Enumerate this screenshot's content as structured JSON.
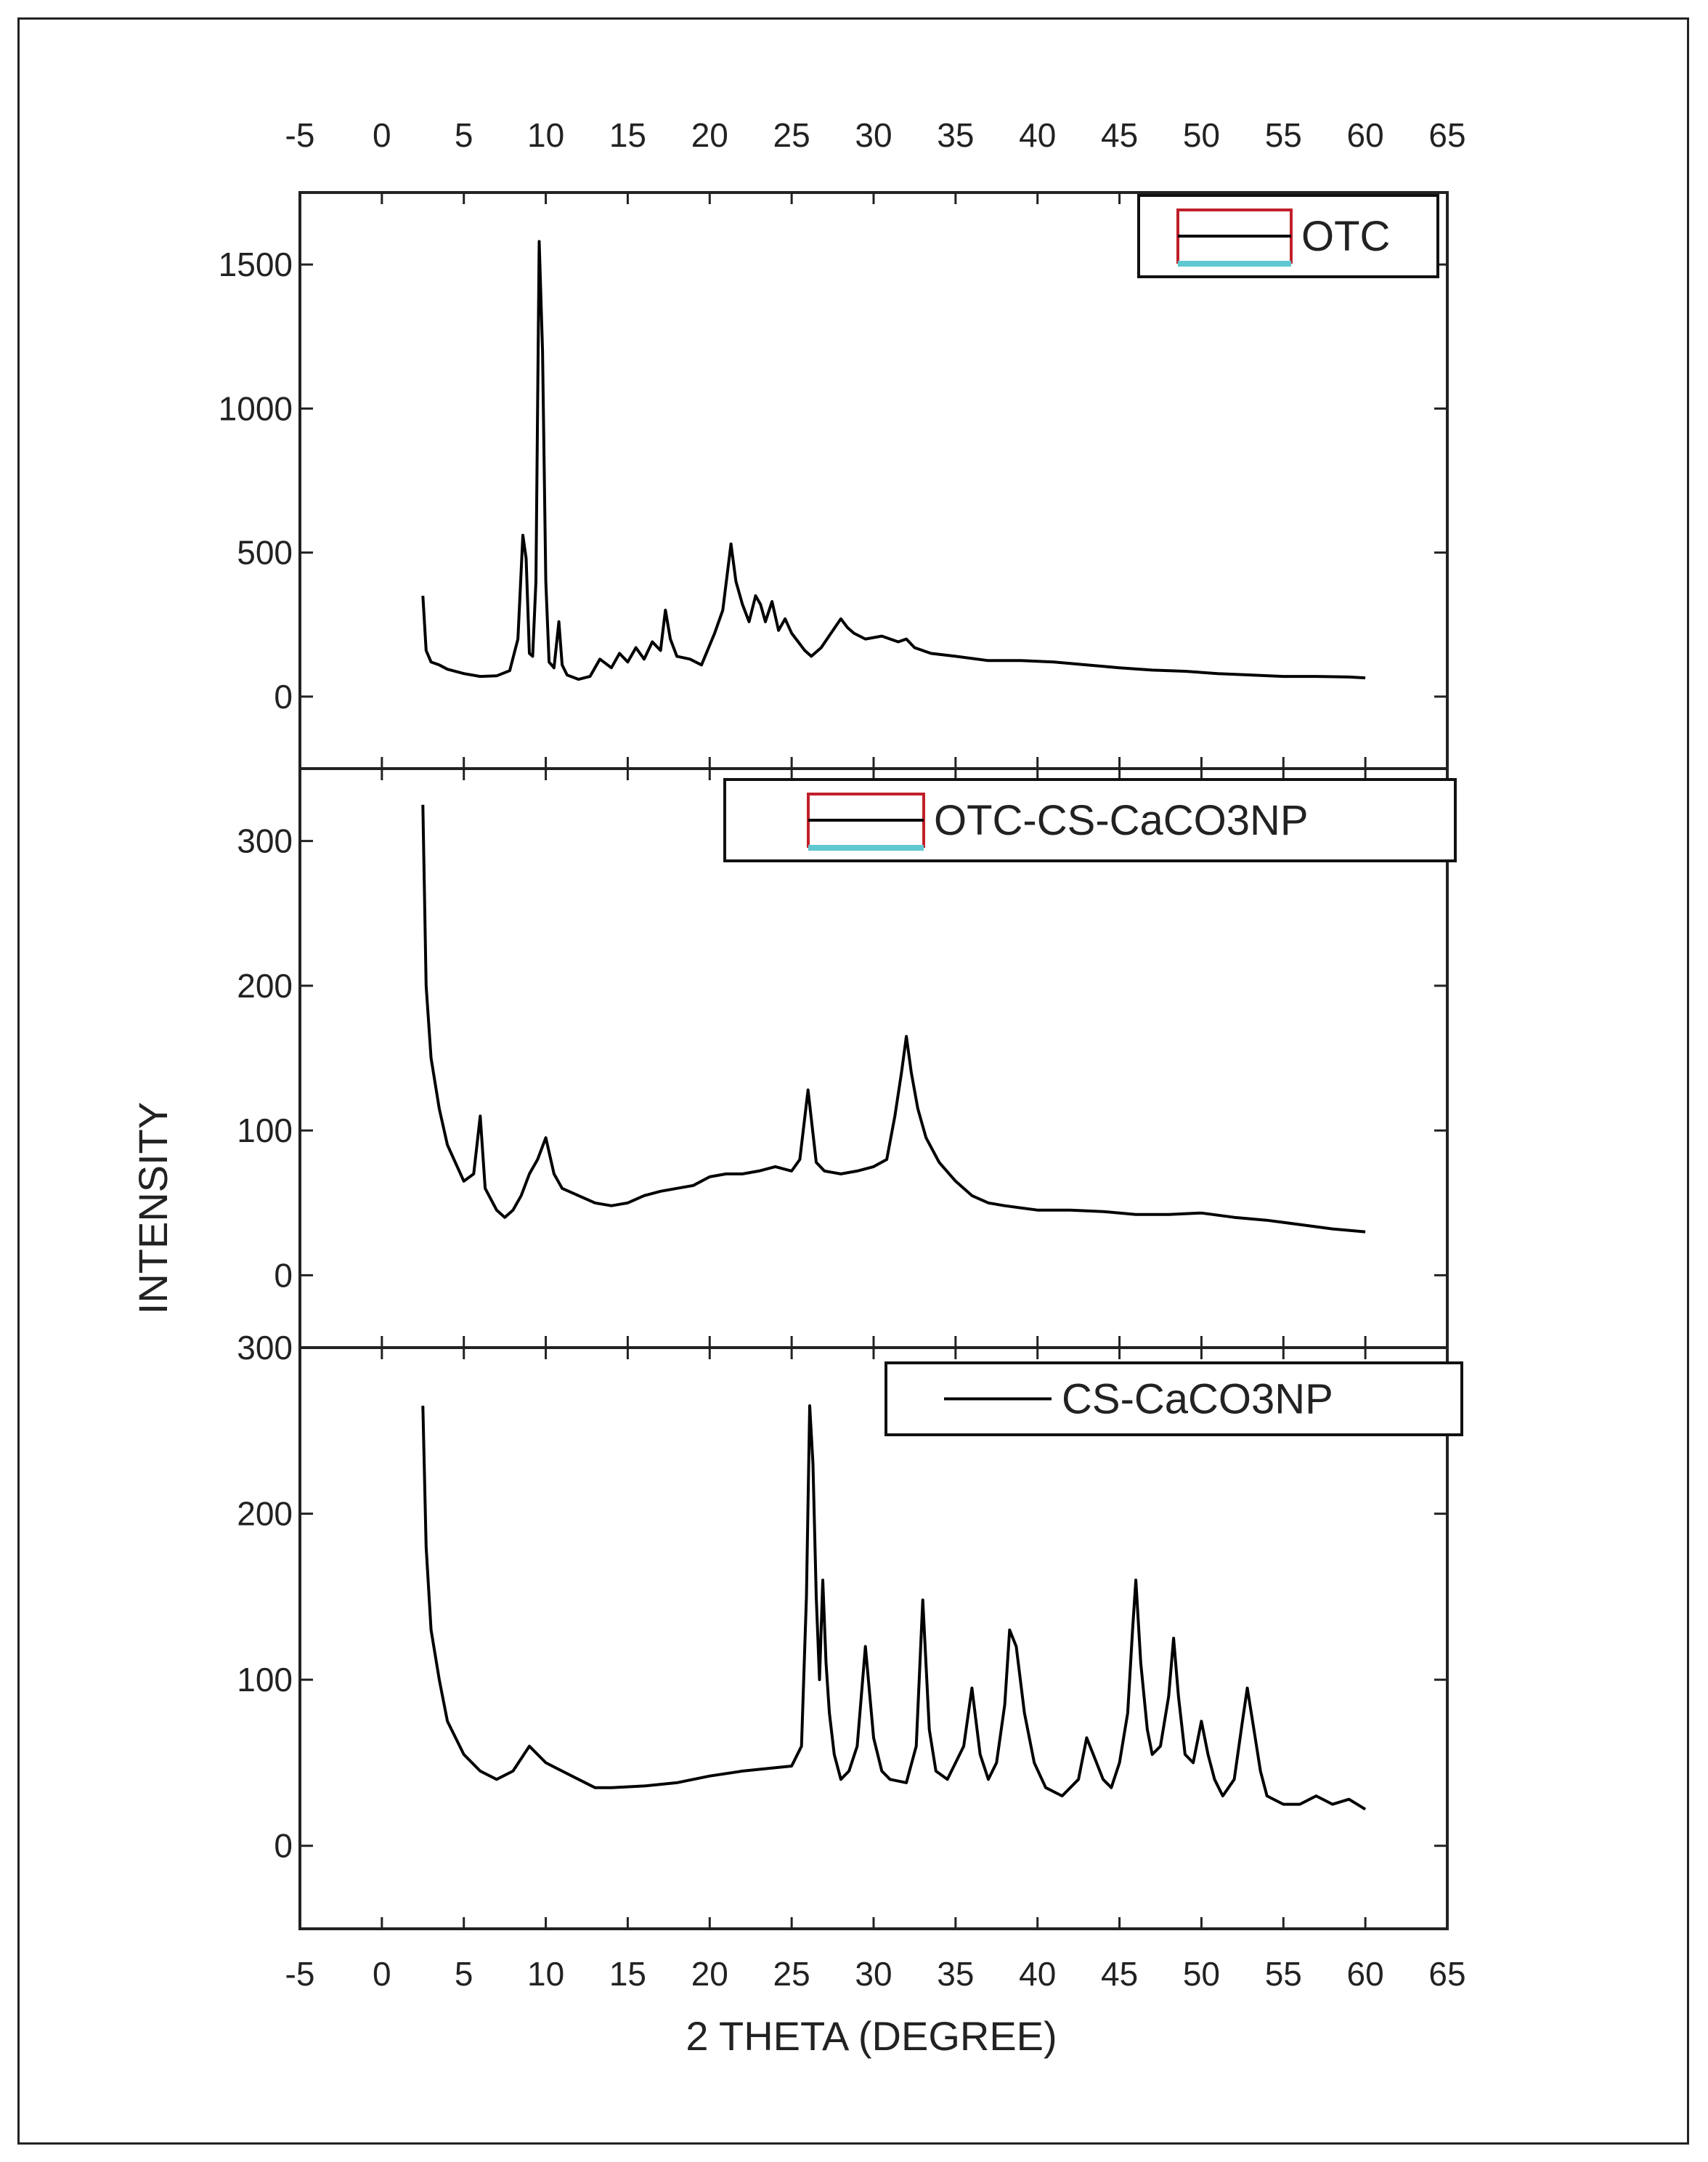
{
  "colors": {
    "line": "#000000",
    "legend_swatch_top": "#c0202a",
    "legend_swatch_bottom": "#5fc8d0",
    "frame": "#222222"
  },
  "chart_data": {
    "type": "line",
    "xlabel": "2 THETA (DEGREE)",
    "ylabel": "INTENSITY",
    "xlim": [
      -5,
      65
    ],
    "x_ticks": [
      -5,
      0,
      5,
      10,
      15,
      20,
      25,
      30,
      35,
      40,
      45,
      50,
      55,
      60,
      65
    ],
    "top_axis_ticks": true,
    "legend_placement": "top-right",
    "panels": [
      {
        "legend": "OTC",
        "ylim": [
          -250,
          1750
        ],
        "y_ticks": [
          0,
          500,
          1000,
          1500
        ],
        "series": [
          {
            "name": "OTC",
            "x": [
              2.5,
              2.7,
              3.0,
              3.5,
              4.0,
              5.0,
              6.0,
              7.0,
              7.8,
              8.3,
              8.6,
              8.8,
              9.0,
              9.2,
              9.4,
              9.6,
              9.8,
              10.0,
              10.2,
              10.5,
              10.8,
              11.0,
              11.3,
              12.0,
              12.7,
              13.3,
              14.0,
              14.5,
              15.0,
              15.5,
              16.0,
              16.5,
              17.0,
              17.3,
              17.6,
              18.0,
              18.8,
              19.5,
              20.3,
              20.8,
              21.3,
              21.6,
              22.0,
              22.4,
              22.8,
              23.1,
              23.4,
              23.8,
              24.2,
              24.6,
              25.0,
              25.4,
              25.8,
              26.2,
              26.8,
              27.4,
              28.0,
              28.4,
              28.8,
              29.5,
              30.5,
              31.5,
              32.0,
              32.5,
              33.5,
              35.0,
              37.0,
              39.0,
              41.0,
              43.0,
              45.0,
              47.0,
              49.0,
              51.0,
              53.0,
              55.0,
              57.0,
              59.0,
              60.0
            ],
            "y": [
              350,
              160,
              120,
              110,
              95,
              80,
              70,
              72,
              90,
              200,
              560,
              480,
              150,
              140,
              400,
              1580,
              1200,
              400,
              120,
              100,
              260,
              110,
              75,
              60,
              70,
              130,
              100,
              150,
              120,
              170,
              130,
              190,
              160,
              300,
              200,
              140,
              130,
              110,
              220,
              300,
              530,
              400,
              320,
              260,
              350,
              320,
              260,
              330,
              230,
              270,
              220,
              190,
              160,
              140,
              170,
              220,
              270,
              240,
              220,
              200,
              210,
              190,
              200,
              170,
              150,
              140,
              125,
              125,
              120,
              110,
              100,
              92,
              88,
              80,
              75,
              70,
              70,
              68,
              65
            ]
          }
        ]
      },
      {
        "legend": "OTC-CS-CaCO3NP",
        "ylim": [
          -50,
          350
        ],
        "y_ticks": [
          0,
          100,
          200,
          300
        ],
        "series": [
          {
            "name": "OTC-CS-CaCO3NP",
            "x": [
              2.5,
              2.7,
              3.0,
              3.5,
              4.0,
              5.0,
              5.6,
              6.0,
              6.3,
              7.0,
              7.5,
              8.0,
              8.5,
              9.0,
              9.5,
              10.0,
              10.5,
              11.0,
              12.0,
              13.0,
              14.0,
              15.0,
              16.0,
              17.0,
              18.0,
              19.0,
              20.0,
              21.0,
              22.0,
              23.0,
              24.0,
              25.0,
              25.5,
              26.0,
              26.5,
              27.0,
              28.0,
              29.0,
              30.0,
              30.8,
              31.3,
              31.7,
              32.0,
              32.3,
              32.7,
              33.2,
              34.0,
              35.0,
              36.0,
              37.0,
              38.0,
              40.0,
              42.0,
              44.0,
              46.0,
              48.0,
              50.0,
              52.0,
              54.0,
              56.0,
              58.0,
              60.0
            ],
            "y": [
              325,
              200,
              150,
              115,
              90,
              65,
              70,
              110,
              60,
              45,
              40,
              45,
              55,
              70,
              80,
              95,
              70,
              60,
              55,
              50,
              48,
              50,
              55,
              58,
              60,
              62,
              68,
              70,
              70,
              72,
              75,
              72,
              80,
              128,
              78,
              72,
              70,
              72,
              75,
              80,
              110,
              140,
              165,
              140,
              115,
              95,
              78,
              65,
              55,
              50,
              48,
              45,
              45,
              44,
              42,
              42,
              43,
              40,
              38,
              35,
              32,
              30
            ]
          }
        ]
      },
      {
        "legend": "CS-CaCO3NP",
        "ylim": [
          -50,
          300
        ],
        "y_ticks": [
          0,
          100,
          200,
          300
        ],
        "series": [
          {
            "name": "CS-CaCO3NP",
            "x": [
              2.5,
              2.7,
              3.0,
              3.5,
              4.0,
              5.0,
              6.0,
              7.0,
              8.0,
              9.0,
              9.5,
              10.0,
              11.0,
              12.0,
              13.0,
              14.0,
              16.0,
              18.0,
              20.0,
              22.0,
              24.0,
              25.0,
              25.6,
              25.9,
              26.1,
              26.3,
              26.5,
              26.7,
              26.9,
              27.1,
              27.3,
              27.6,
              28.0,
              28.5,
              29.0,
              29.5,
              30.0,
              30.5,
              31.0,
              32.0,
              32.6,
              33.0,
              33.4,
              33.8,
              34.5,
              35.0,
              35.5,
              36.0,
              36.5,
              37.0,
              37.5,
              38.0,
              38.3,
              38.7,
              39.2,
              39.8,
              40.5,
              41.5,
              42.5,
              43.0,
              43.4,
              44.0,
              44.5,
              45.0,
              45.5,
              45.8,
              46.0,
              46.3,
              46.7,
              47.0,
              47.5,
              48.0,
              48.3,
              48.6,
              49.0,
              49.5,
              50.0,
              50.4,
              50.8,
              51.3,
              52.0,
              52.5,
              52.8,
              53.2,
              53.6,
              54.0,
              55.0,
              56.0,
              57.0,
              58.0,
              59.0,
              60.0
            ],
            "y": [
              265,
              180,
              130,
              100,
              75,
              55,
              45,
              40,
              45,
              60,
              55,
              50,
              45,
              40,
              35,
              35,
              36,
              38,
              42,
              45,
              47,
              48,
              60,
              150,
              265,
              230,
              150,
              100,
              160,
              110,
              80,
              55,
              40,
              45,
              60,
              120,
              65,
              45,
              40,
              38,
              60,
              148,
              70,
              45,
              40,
              50,
              60,
              95,
              55,
              40,
              50,
              85,
              130,
              120,
              80,
              50,
              35,
              30,
              40,
              65,
              55,
              40,
              35,
              50,
              80,
              130,
              160,
              110,
              70,
              55,
              60,
              90,
              125,
              90,
              55,
              50,
              75,
              55,
              40,
              30,
              40,
              75,
              95,
              70,
              45,
              30,
              25,
              25,
              30,
              25,
              28,
              22
            ]
          }
        ]
      }
    ]
  }
}
